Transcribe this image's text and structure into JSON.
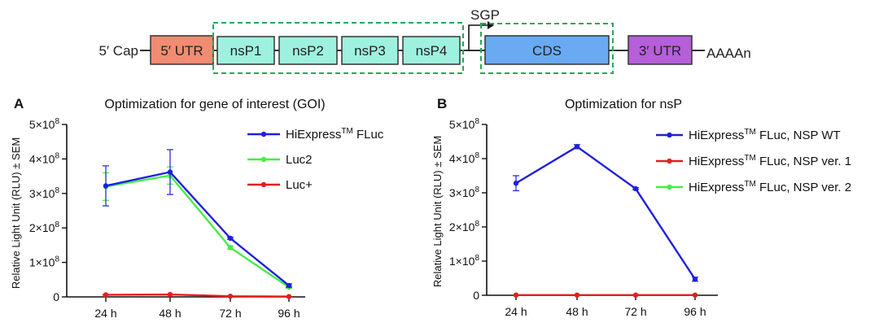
{
  "construct": {
    "cap": "5′ Cap",
    "utr5": "5′ UTR",
    "nsps": [
      "nsP1",
      "nsP2",
      "nsP3",
      "nsP4"
    ],
    "sgp": "SGP",
    "cds": "CDS",
    "utr3": "3′ UTR",
    "polyA": "AAAAn",
    "colors": {
      "utr5": "#f08c72",
      "nsp": "#9ff1df",
      "cds": "#6aaaf3",
      "utr3": "#b55fd8",
      "dashed_box": "#22aa55"
    }
  },
  "chart_data": [
    {
      "panel": "A",
      "type": "line",
      "title": "Optimization for gene of interest (GOI)",
      "ylabel": "Relative Light Unit (RLU) ± SEM",
      "xlabel": "",
      "categories": [
        "24 h",
        "48 h",
        "72 h",
        "96 h"
      ],
      "ylim": [
        0,
        500000000
      ],
      "yticks": [
        0,
        100000000,
        200000000,
        300000000,
        400000000,
        500000000
      ],
      "ytick_labels": [
        {
          "mant": "0",
          "exp": ""
        },
        {
          "mant": "1×10",
          "exp": "8"
        },
        {
          "mant": "2×10",
          "exp": "8"
        },
        {
          "mant": "3×10",
          "exp": "8"
        },
        {
          "mant": "4×10",
          "exp": "8"
        },
        {
          "mant": "5×10",
          "exp": "8"
        }
      ],
      "legend_position": "top-right",
      "series": [
        {
          "name": "HiExpress",
          "sup": "TM",
          "suffix": " FLuc",
          "color": "#1f1fe0",
          "values": [
            322000000,
            362000000,
            170000000,
            33000000
          ],
          "errors": [
            58000000,
            65000000,
            3000000,
            5000000
          ]
        },
        {
          "name": "Luc2",
          "sup": "",
          "suffix": "",
          "color": "#44ee44",
          "values": [
            320000000,
            352000000,
            143000000,
            28000000
          ],
          "errors": [
            40000000,
            25000000,
            5000000,
            3000000
          ]
        },
        {
          "name": "Luc+",
          "sup": "",
          "suffix": "",
          "color": "#e61e1e",
          "values": [
            6000000,
            7000000,
            2000000,
            1000000
          ],
          "errors": [
            1000000,
            1000000,
            500000,
            500000
          ]
        }
      ]
    },
    {
      "panel": "B",
      "type": "line",
      "title": "Optimization for nsP",
      "ylabel": "Relative Light Unit (RLU) ± SEM",
      "xlabel": "",
      "categories": [
        "24 h",
        "48 h",
        "72 h",
        "96 h"
      ],
      "ylim": [
        0,
        500000000
      ],
      "yticks": [
        0,
        100000000,
        200000000,
        300000000,
        400000000,
        500000000
      ],
      "ytick_labels": [
        {
          "mant": "0",
          "exp": ""
        },
        {
          "mant": "1×10",
          "exp": "8"
        },
        {
          "mant": "2×10",
          "exp": "8"
        },
        {
          "mant": "3×10",
          "exp": "8"
        },
        {
          "mant": "4×10",
          "exp": "8"
        },
        {
          "mant": "5×10",
          "exp": "8"
        }
      ],
      "legend_position": "top-right",
      "series": [
        {
          "name": "HiExpress",
          "sup": "TM",
          "suffix": " FLuc, NSP WT",
          "color": "#1f1fe0",
          "values": [
            328000000,
            435000000,
            312000000,
            47000000
          ],
          "errors": [
            22000000,
            6000000,
            3000000,
            6000000
          ]
        },
        {
          "name": "HiExpress",
          "sup": "TM",
          "suffix": " FLuc, NSP ver. 1",
          "color": "#e61e1e",
          "values": [
            500000,
            500000,
            500000,
            500000
          ],
          "errors": [
            0,
            0,
            0,
            0
          ]
        },
        {
          "name": "HiExpress",
          "sup": "TM",
          "suffix": " FLuc, NSP ver. 2",
          "color": "#44ee44",
          "values": [
            500000,
            500000,
            500000,
            500000
          ],
          "errors": [
            0,
            0,
            0,
            0
          ]
        }
      ]
    }
  ]
}
